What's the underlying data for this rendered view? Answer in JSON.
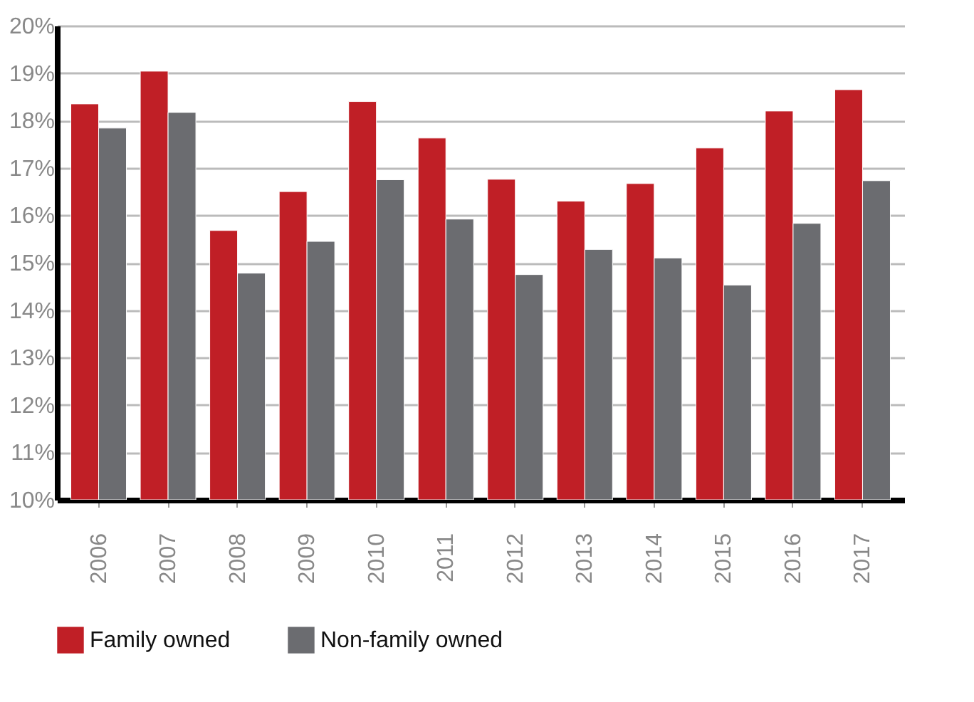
{
  "chart_data": {
    "type": "bar",
    "categories": [
      "2006",
      "2007",
      "2008",
      "2009",
      "2010",
      "2011",
      "2012",
      "2013",
      "2014",
      "2015",
      "2016",
      "2017"
    ],
    "series": [
      {
        "name": "Family owned",
        "color": "#c01f26",
        "values": [
          18.35,
          19.04,
          15.68,
          16.5,
          18.4,
          17.63,
          16.76,
          16.3,
          16.67,
          17.42,
          18.2,
          18.65
        ]
      },
      {
        "name": "Non-family owned",
        "color": "#6b6c70",
        "values": [
          17.84,
          18.17,
          14.78,
          15.45,
          16.75,
          15.92,
          14.75,
          15.28,
          15.1,
          14.53,
          15.83,
          16.73
        ]
      }
    ],
    "ylim": [
      10,
      20
    ],
    "yticks": [
      {
        "value": 10,
        "label": "10%"
      },
      {
        "value": 11,
        "label": "11%"
      },
      {
        "value": 12,
        "label": "12%"
      },
      {
        "value": 13,
        "label": "13%"
      },
      {
        "value": 14,
        "label": "14%"
      },
      {
        "value": 15,
        "label": "15%"
      },
      {
        "value": 16,
        "label": "16%"
      },
      {
        "value": 17,
        "label": "17%"
      },
      {
        "value": 18,
        "label": "18%"
      },
      {
        "value": 19,
        "label": "19%"
      },
      {
        "value": 20,
        "label": "20%"
      }
    ],
    "grid": "y",
    "legend": "bottom"
  }
}
